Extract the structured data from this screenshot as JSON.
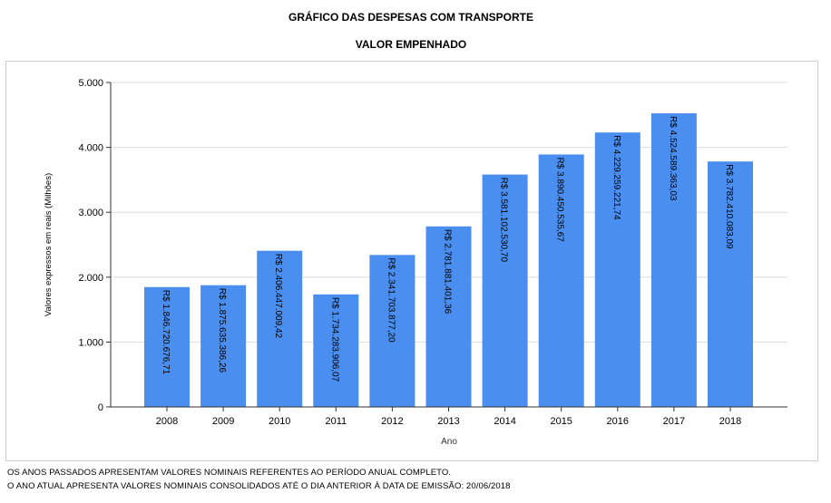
{
  "titles": {
    "line1": "GRÁFICO DAS DESPESAS COM TRANSPORTE",
    "line2": "VALOR EMPENHADO"
  },
  "notes": {
    "line1": "OS ANOS PASSADOS APRESENTAM VALORES NOMINAIS REFERENTES AO PERÍODO ANUAL COMPLETO.",
    "line2": "O ANO ATUAL APRESENTA VALORES NOMINAIS CONSOLIDADOS ATÉ O DIA ANTERIOR À DATA DE EMISSÃO: 20/06/2018"
  },
  "colors": {
    "bar": "#4a8ef0",
    "grid": "#dddddd",
    "axis": "#333333"
  },
  "chart_data": {
    "type": "bar",
    "title": "GRÁFICO DAS DESPESAS COM TRANSPORTE",
    "subtitle": "VALOR EMPENHADO",
    "xlabel": "Ano",
    "ylabel": "Valores expressos em reais (Milhões)",
    "ylim": [
      0,
      5000
    ],
    "yticks": [
      0,
      1000,
      2000,
      3000,
      4000,
      5000
    ],
    "ytick_labels": [
      "0",
      "1.000",
      "2.000",
      "3.000",
      "4.000",
      "5.000"
    ],
    "grid": true,
    "categories": [
      "2008",
      "2009",
      "2010",
      "2011",
      "2012",
      "2013",
      "2014",
      "2015",
      "2016",
      "2017",
      "2018"
    ],
    "values": [
      1846.72,
      1875.64,
      2406.45,
      1734.28,
      2341.7,
      2781.88,
      3581.1,
      3890.45,
      4229.26,
      4524.59,
      3782.41
    ],
    "data_labels": [
      "R$ 1.846.720.676,71",
      "R$ 1.875.635.386,26",
      "R$ 2.406.447.009,42",
      "R$ 1.734.283.906,07",
      "R$ 2.341.703.877,20",
      "R$ 2.781.881.401,36",
      "R$ 3.581.102.530,70",
      "R$ 3.890.450.535,67",
      "R$ 4.229.259.221,74",
      "R$ 4.524.589.363,03",
      "R$ 3.782.410.083,09"
    ]
  }
}
